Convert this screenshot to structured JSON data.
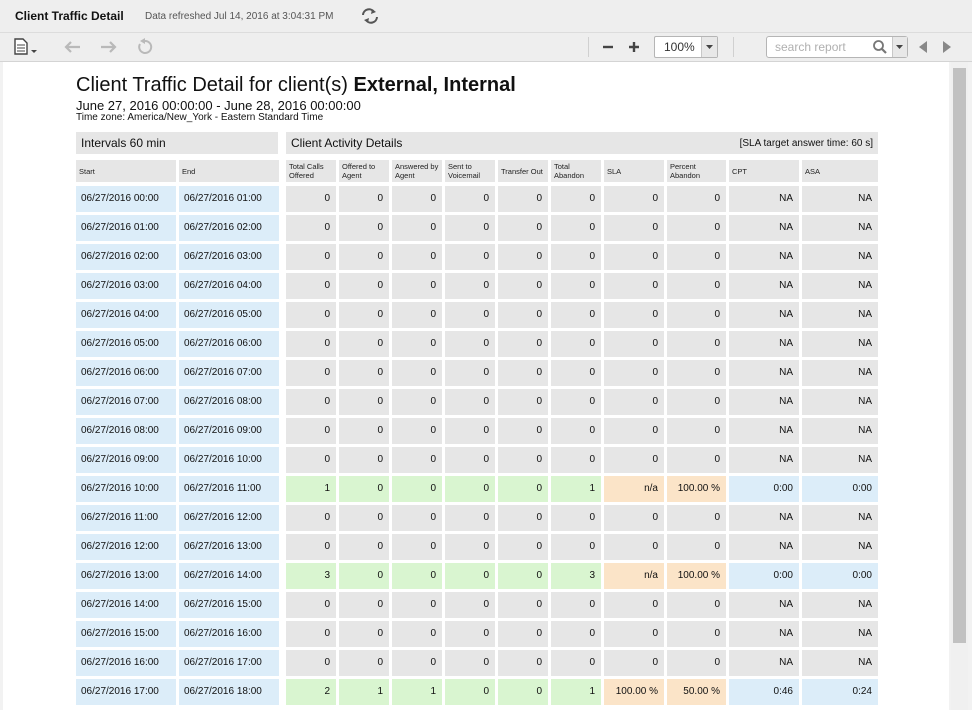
{
  "titlebar": {
    "title": "Client Traffic Detail",
    "refresh_text": "Data refreshed Jul 14, 2016 at 3:04:31 PM"
  },
  "toolbar": {
    "zoom_value": "100%",
    "search_placeholder": "search report"
  },
  "report": {
    "title_prefix": "Client Traffic Detail for client(s) ",
    "title_clients": "External, Internal",
    "date_range": "June 27, 2016 00:00:00 - June 28, 2016 00:00:00",
    "timezone": "Time zone: America/New_York - Eastern Standard Time",
    "intervals_label": "Intervals 60 min",
    "activity_label": "Client Activity Details",
    "sla_target": "[SLA target answer time: 60 s]"
  },
  "table": {
    "columns": [
      "Start",
      "End",
      "Total Calls Offered",
      "Offered to Agent",
      "Answered by Agent",
      "Sent to Voicemail",
      "Transfer Out",
      "Total Abandon",
      "SLA",
      "Percent Abandon",
      "CPT",
      "ASA"
    ],
    "rows": [
      {
        "start": "06/27/2016 00:00",
        "end": "06/27/2016 01:00",
        "cells": [
          "0",
          "0",
          "0",
          "0",
          "0",
          "0",
          "0",
          "0",
          "NA",
          "NA"
        ],
        "active": false
      },
      {
        "start": "06/27/2016 01:00",
        "end": "06/27/2016 02:00",
        "cells": [
          "0",
          "0",
          "0",
          "0",
          "0",
          "0",
          "0",
          "0",
          "NA",
          "NA"
        ],
        "active": false
      },
      {
        "start": "06/27/2016 02:00",
        "end": "06/27/2016 03:00",
        "cells": [
          "0",
          "0",
          "0",
          "0",
          "0",
          "0",
          "0",
          "0",
          "NA",
          "NA"
        ],
        "active": false
      },
      {
        "start": "06/27/2016 03:00",
        "end": "06/27/2016 04:00",
        "cells": [
          "0",
          "0",
          "0",
          "0",
          "0",
          "0",
          "0",
          "0",
          "NA",
          "NA"
        ],
        "active": false
      },
      {
        "start": "06/27/2016 04:00",
        "end": "06/27/2016 05:00",
        "cells": [
          "0",
          "0",
          "0",
          "0",
          "0",
          "0",
          "0",
          "0",
          "NA",
          "NA"
        ],
        "active": false
      },
      {
        "start": "06/27/2016 05:00",
        "end": "06/27/2016 06:00",
        "cells": [
          "0",
          "0",
          "0",
          "0",
          "0",
          "0",
          "0",
          "0",
          "NA",
          "NA"
        ],
        "active": false
      },
      {
        "start": "06/27/2016 06:00",
        "end": "06/27/2016 07:00",
        "cells": [
          "0",
          "0",
          "0",
          "0",
          "0",
          "0",
          "0",
          "0",
          "NA",
          "NA"
        ],
        "active": false
      },
      {
        "start": "06/27/2016 07:00",
        "end": "06/27/2016 08:00",
        "cells": [
          "0",
          "0",
          "0",
          "0",
          "0",
          "0",
          "0",
          "0",
          "NA",
          "NA"
        ],
        "active": false
      },
      {
        "start": "06/27/2016 08:00",
        "end": "06/27/2016 09:00",
        "cells": [
          "0",
          "0",
          "0",
          "0",
          "0",
          "0",
          "0",
          "0",
          "NA",
          "NA"
        ],
        "active": false
      },
      {
        "start": "06/27/2016 09:00",
        "end": "06/27/2016 10:00",
        "cells": [
          "0",
          "0",
          "0",
          "0",
          "0",
          "0",
          "0",
          "0",
          "NA",
          "NA"
        ],
        "active": false
      },
      {
        "start": "06/27/2016 10:00",
        "end": "06/27/2016 11:00",
        "cells": [
          "1",
          "0",
          "0",
          "0",
          "0",
          "1",
          "n/a",
          "100.00 %",
          "0:00",
          "0:00"
        ],
        "active": true
      },
      {
        "start": "06/27/2016 11:00",
        "end": "06/27/2016 12:00",
        "cells": [
          "0",
          "0",
          "0",
          "0",
          "0",
          "0",
          "0",
          "0",
          "NA",
          "NA"
        ],
        "active": false
      },
      {
        "start": "06/27/2016 12:00",
        "end": "06/27/2016 13:00",
        "cells": [
          "0",
          "0",
          "0",
          "0",
          "0",
          "0",
          "0",
          "0",
          "NA",
          "NA"
        ],
        "active": false
      },
      {
        "start": "06/27/2016 13:00",
        "end": "06/27/2016 14:00",
        "cells": [
          "3",
          "0",
          "0",
          "0",
          "0",
          "3",
          "n/a",
          "100.00 %",
          "0:00",
          "0:00"
        ],
        "active": true
      },
      {
        "start": "06/27/2016 14:00",
        "end": "06/27/2016 15:00",
        "cells": [
          "0",
          "0",
          "0",
          "0",
          "0",
          "0",
          "0",
          "0",
          "NA",
          "NA"
        ],
        "active": false
      },
      {
        "start": "06/27/2016 15:00",
        "end": "06/27/2016 16:00",
        "cells": [
          "0",
          "0",
          "0",
          "0",
          "0",
          "0",
          "0",
          "0",
          "NA",
          "NA"
        ],
        "active": false
      },
      {
        "start": "06/27/2016 16:00",
        "end": "06/27/2016 17:00",
        "cells": [
          "0",
          "0",
          "0",
          "0",
          "0",
          "0",
          "0",
          "0",
          "NA",
          "NA"
        ],
        "active": false
      },
      {
        "start": "06/27/2016 17:00",
        "end": "06/27/2016 18:00",
        "cells": [
          "2",
          "1",
          "1",
          "0",
          "0",
          "1",
          "100.00 %",
          "50.00 %",
          "0:46",
          "0:24"
        ],
        "active": true
      }
    ]
  }
}
